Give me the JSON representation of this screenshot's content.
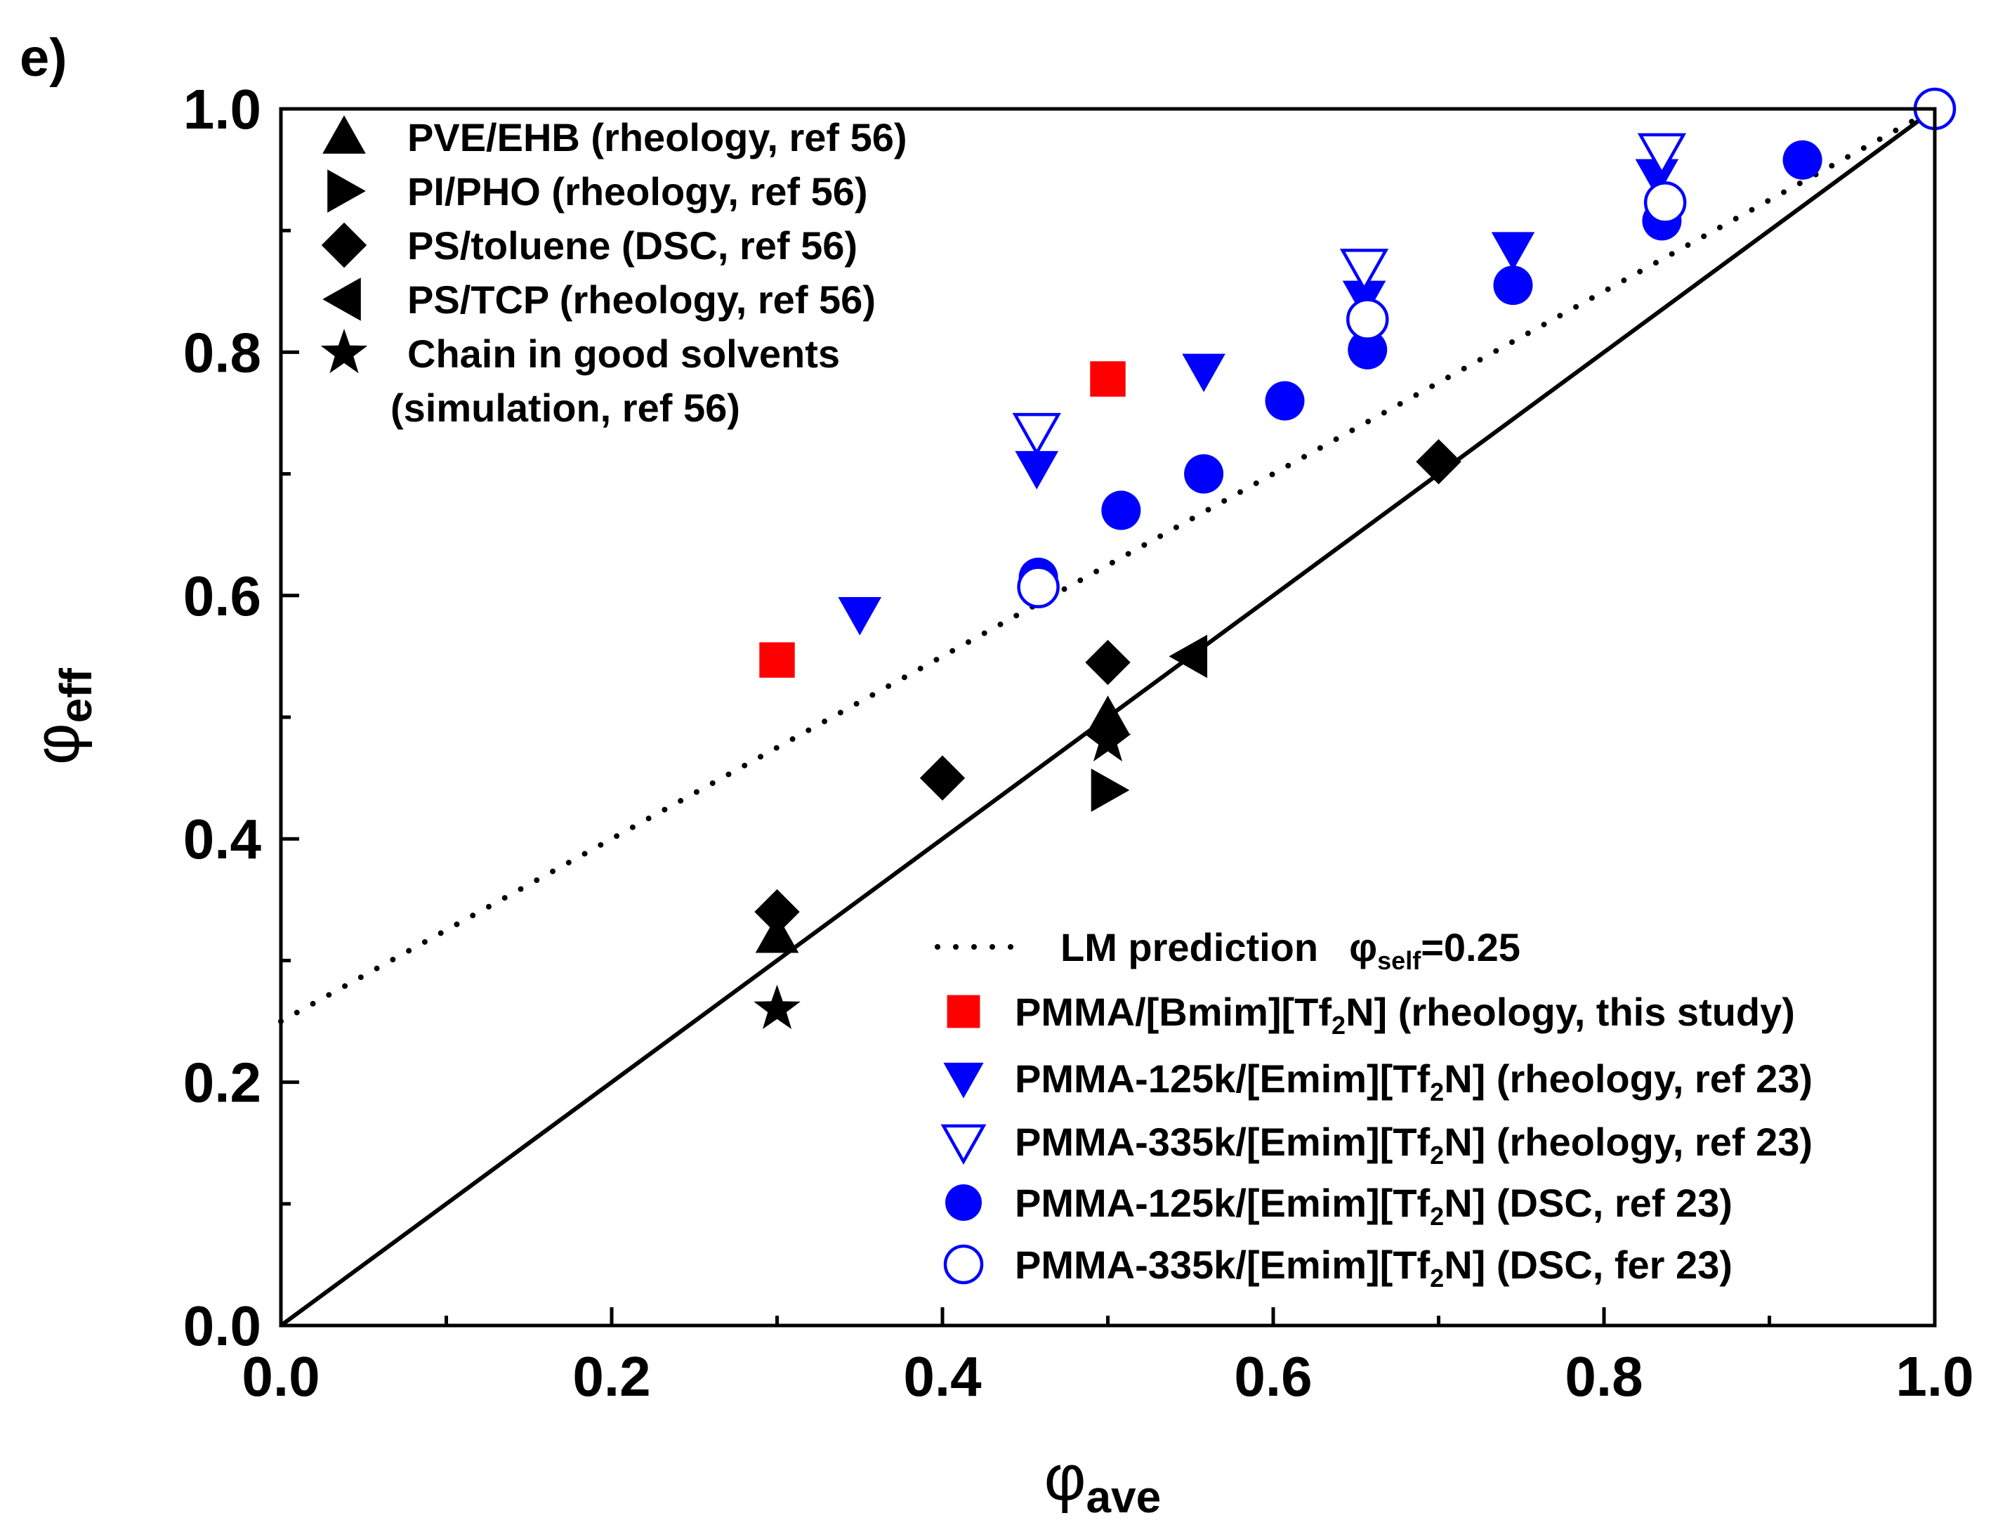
{
  "chart_data": {
    "type": "scatter",
    "panel_label": "e)",
    "title": "",
    "xlabel": {
      "symbol": "φ",
      "subscript": "ave"
    },
    "ylabel": {
      "symbol": "φ",
      "subscript": "eff"
    },
    "xlim": [
      0.0,
      1.0
    ],
    "ylim": [
      0.0,
      1.0
    ],
    "x_ticks": [
      "0.0",
      "0.2",
      "0.4",
      "0.6",
      "0.8",
      "1.0"
    ],
    "y_ticks": [
      "0.0",
      "0.2",
      "0.4",
      "0.6",
      "0.8",
      "1.0"
    ],
    "grid": false,
    "lines": [
      {
        "name": "identity",
        "style": "solid",
        "color": "#000000",
        "x": [
          0.0,
          1.0
        ],
        "y": [
          0.0,
          1.0
        ]
      },
      {
        "name": "LM prediction",
        "style": "dotted",
        "color": "#000000",
        "x": [
          0.0,
          1.0
        ],
        "y": [
          0.25,
          1.0
        ]
      }
    ],
    "series": [
      {
        "name": "PVE/EHB (rheology, ref 56)",
        "marker": "triangle-up",
        "color": "#000000",
        "filled": true,
        "x": [
          0.3,
          0.5
        ],
        "y": [
          0.32,
          0.5
        ]
      },
      {
        "name": "PI/PHO (rheology, ref 56)",
        "marker": "triangle-right",
        "color": "#000000",
        "filled": true,
        "x": [
          0.5
        ],
        "y": [
          0.44
        ]
      },
      {
        "name": "PS/toluene (DSC, ref 56)",
        "marker": "diamond",
        "color": "#000000",
        "filled": true,
        "x": [
          0.3,
          0.4,
          0.5,
          0.7
        ],
        "y": [
          0.34,
          0.45,
          0.545,
          0.71
        ]
      },
      {
        "name": "PS/TCP (rheology, ref 56)",
        "marker": "triangle-left",
        "color": "#000000",
        "filled": true,
        "x": [
          0.55
        ],
        "y": [
          0.55
        ]
      },
      {
        "name": "Chain in good solvents",
        "marker": "star",
        "color": "#000000",
        "filled": true,
        "x": [
          0.3,
          0.5
        ],
        "y": [
          0.26,
          0.48
        ]
      },
      {
        "name": "PMMA/[Bmim][Tf2N] (rheology, this study)",
        "marker": "square",
        "color": "#ff0000",
        "filled": true,
        "x": [
          0.3,
          0.5
        ],
        "y": [
          0.547,
          0.778
        ]
      },
      {
        "name": "PMMA-125k/[Emim][Tf2N] (rheology, ref 23)",
        "marker": "triangle-down",
        "color": "#0000ff",
        "filled": true,
        "x": [
          0.35,
          0.457,
          0.558,
          0.655,
          0.745,
          0.832
        ],
        "y": [
          0.585,
          0.705,
          0.785,
          0.845,
          0.885,
          0.945
        ]
      },
      {
        "name": "PMMA-335k/[Emim][Tf2N] (rheology, ref 23)",
        "marker": "triangle-down",
        "color": "#0000ff",
        "filled": false,
        "x": [
          0.457,
          0.655,
          0.835
        ],
        "y": [
          0.735,
          0.87,
          0.965
        ]
      },
      {
        "name": "PMMA-125k/[Emim][Tf2N] (DSC, ref 23)",
        "marker": "circle",
        "color": "#0000ff",
        "filled": true,
        "x": [
          0.458,
          0.508,
          0.558,
          0.607,
          0.657,
          0.745,
          0.835,
          0.92
        ],
        "y": [
          0.615,
          0.67,
          0.7,
          0.76,
          0.802,
          0.855,
          0.908,
          0.958
        ]
      },
      {
        "name": "PMMA-335k/[Emim][Tf2N] (DSC, fer 23)",
        "marker": "circle",
        "color": "#0000ff",
        "filled": false,
        "x": [
          0.458,
          0.657,
          0.837,
          1.0
        ],
        "y": [
          0.607,
          0.827,
          0.923,
          1.0
        ]
      }
    ],
    "legend_top_left": [
      {
        "label": "PVE/EHB (rheology, ref 56)",
        "marker": "triangle-up",
        "color": "#000000",
        "filled": true
      },
      {
        "label": "PI/PHO (rheology, ref 56)",
        "marker": "triangle-right",
        "color": "#000000",
        "filled": true
      },
      {
        "label": "PS/toluene (DSC, ref 56)",
        "marker": "diamond",
        "color": "#000000",
        "filled": true
      },
      {
        "label": "PS/TCP (rheology, ref 56)",
        "marker": "triangle-left",
        "color": "#000000",
        "filled": true
      },
      {
        "label": "Chain in good solvents",
        "label2": "(simulation, ref 56)",
        "marker": "star",
        "color": "#000000",
        "filled": true
      }
    ],
    "legend_bottom_right": [
      {
        "label": "LM prediction",
        "extra_symbol": "φ",
        "extra_sub": "self",
        "extra_val": "=0.25",
        "marker": "dotted-line",
        "color": "#000000"
      },
      {
        "label_a": "PMMA/[Bmim][Tf",
        "label_sub": "2",
        "label_b": "N] (rheology, this study)",
        "marker": "square",
        "color": "#ff0000",
        "filled": true
      },
      {
        "label_a": "PMMA-125k/[Emim][Tf",
        "label_sub": "2",
        "label_b": "N] (rheology, ref 23)",
        "marker": "triangle-down",
        "color": "#0000ff",
        "filled": true
      },
      {
        "label_a": "PMMA-335k/[Emim][Tf",
        "label_sub": "2",
        "label_b": "N] (rheology, ref 23)",
        "marker": "triangle-down",
        "color": "#0000ff",
        "filled": false
      },
      {
        "label_a": "PMMA-125k/[Emim][Tf",
        "label_sub": "2",
        "label_b": "N] (DSC, ref 23)",
        "marker": "circle",
        "color": "#0000ff",
        "filled": true
      },
      {
        "label_a": "PMMA-335k/[Emim][Tf",
        "label_sub": "2",
        "label_b": "N] (DSC, fer 23)",
        "marker": "circle",
        "color": "#0000ff",
        "filled": false
      }
    ]
  }
}
